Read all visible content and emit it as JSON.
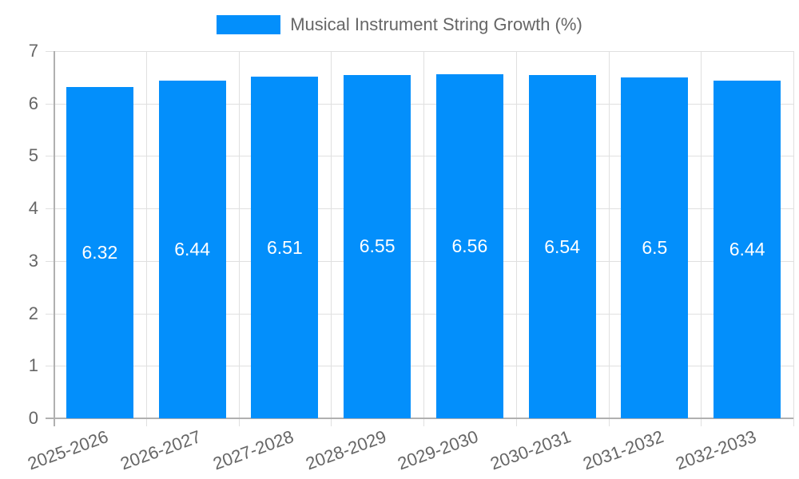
{
  "chart_data": {
    "type": "bar",
    "title": "",
    "legend": [
      "Musical Instrument String Growth (%)"
    ],
    "legend_position": "top",
    "categories": [
      "2025-2026",
      "2026-2027",
      "2027-2028",
      "2028-2029",
      "2029-2030",
      "2030-2031",
      "2031-2032",
      "2032-2033"
    ],
    "series": [
      {
        "name": "Musical Instrument String Growth (%)",
        "values": [
          6.32,
          6.44,
          6.51,
          6.55,
          6.56,
          6.54,
          6.5,
          6.44
        ],
        "color": "#038ffb"
      }
    ],
    "data_labels": [
      "6.32",
      "6.44",
      "6.51",
      "6.55",
      "6.56",
      "6.54",
      "6.5",
      "6.44"
    ],
    "xlabel": "",
    "ylabel": "",
    "ylim": [
      0,
      7
    ],
    "yticks": [
      "0",
      "1",
      "2",
      "3",
      "4",
      "5",
      "6",
      "7"
    ],
    "grid": true
  }
}
